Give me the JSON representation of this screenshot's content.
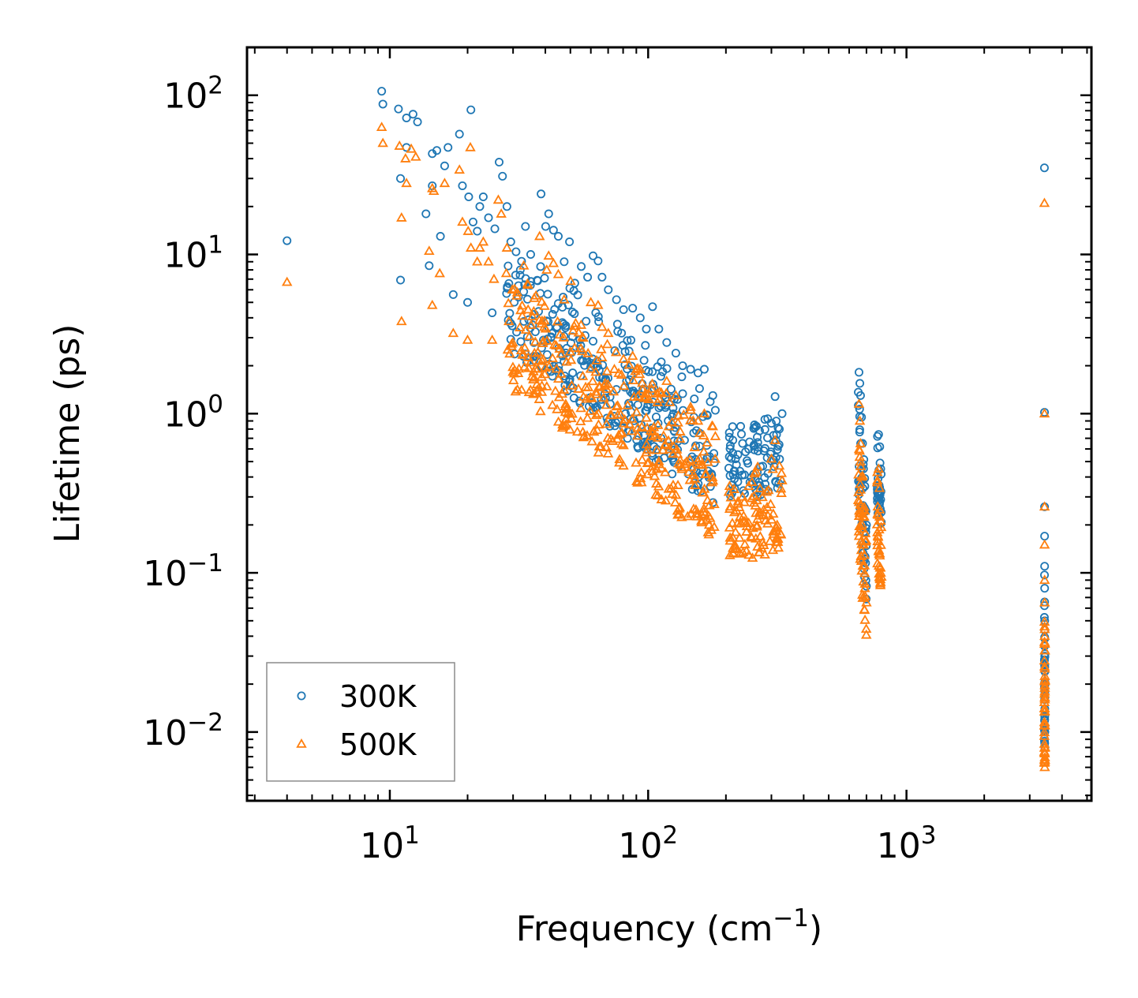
{
  "chart_data": {
    "type": "scatter",
    "xscale": "log",
    "yscale": "log",
    "xlabel": "Frequency (cm",
    "xlabel_sup": "−1",
    "xlabel_close": ")",
    "ylabel": "Lifetime (ps)",
    "xlim": [
      2.8,
      5200
    ],
    "ylim": [
      0.0037,
      200
    ],
    "xticks": [
      {
        "value": 10,
        "base": "10",
        "exp": "1"
      },
      {
        "value": 100,
        "base": "10",
        "exp": "2"
      },
      {
        "value": 1000,
        "base": "10",
        "exp": "3"
      }
    ],
    "yticks": [
      {
        "value": 0.01,
        "base": "10",
        "exp": "−2"
      },
      {
        "value": 0.1,
        "base": "10",
        "exp": "−1"
      },
      {
        "value": 1,
        "base": "10",
        "exp": "0"
      },
      {
        "value": 10,
        "base": "10",
        "exp": "1"
      },
      {
        "value": 100,
        "base": "10",
        "exp": "2"
      }
    ],
    "legend": {
      "position": "lower-left"
    },
    "series": [
      {
        "name": "300K",
        "marker": "circle",
        "color": "#1f77b4",
        "points": [
          [
            4.0,
            12.2
          ],
          [
            9.3,
            106
          ],
          [
            9.4,
            88
          ],
          [
            10.8,
            82
          ],
          [
            11.6,
            72
          ],
          [
            12.3,
            76
          ],
          [
            12.8,
            68
          ],
          [
            11.0,
            30
          ],
          [
            11.6,
            47
          ],
          [
            11.0,
            6.9
          ],
          [
            13.8,
            18
          ],
          [
            14.6,
            43
          ],
          [
            15.2,
            45
          ],
          [
            16.3,
            36
          ],
          [
            16.8,
            47
          ],
          [
            15.7,
            13
          ],
          [
            14.6,
            27
          ],
          [
            14.2,
            8.5
          ],
          [
            17.6,
            5.6
          ],
          [
            18.6,
            57
          ],
          [
            19.1,
            27
          ],
          [
            20.2,
            23
          ],
          [
            20.6,
            81
          ],
          [
            20.0,
            5.0
          ],
          [
            21.0,
            16
          ],
          [
            21.8,
            14
          ],
          [
            22.3,
            20
          ],
          [
            23.0,
            23
          ],
          [
            24.1,
            17
          ],
          [
            24.9,
            4.3
          ],
          [
            25.5,
            14.5
          ],
          [
            26.5,
            38
          ],
          [
            27.3,
            31
          ],
          [
            28.4,
            20
          ],
          [
            29.4,
            12
          ],
          [
            30.8,
            10.4
          ],
          [
            32.0,
            8
          ],
          [
            33.5,
            15
          ],
          [
            35.1,
            10
          ],
          [
            36.3,
            4.2
          ],
          [
            38.5,
            24
          ],
          [
            40.1,
            15
          ],
          [
            41.2,
            18
          ],
          [
            43.0,
            14.2
          ],
          [
            44.9,
            13
          ],
          [
            47.3,
            9.0
          ],
          [
            49.6,
            12
          ],
          [
            52.0,
            6.6
          ],
          [
            55.1,
            8.4
          ],
          [
            58.3,
            7.2
          ],
          [
            61.2,
            9.8
          ],
          [
            64.0,
            9.1
          ],
          [
            66.3,
            7.2
          ],
          [
            70.1,
            6.0
          ],
          [
            75.4,
            5.2
          ],
          [
            80.3,
            4.5
          ],
          [
            87.1,
            4.6
          ],
          [
            93.2,
            4.0
          ],
          [
            98.4,
            3.4
          ],
          [
            104,
            4.7
          ],
          [
            110,
            3.4
          ],
          [
            118,
            2.8
          ],
          [
            128,
            2.4
          ],
          [
            136,
            2.0
          ],
          [
            146,
            1.9
          ],
          [
            156,
            1.8
          ],
          [
            165,
            1.9
          ],
          [
            178,
            1.3
          ],
          [
            182,
            1.05
          ],
          [
            208,
            0.63
          ],
          [
            218,
            0.52
          ],
          [
            232,
            0.65
          ],
          [
            245,
            0.6
          ],
          [
            258,
            0.85
          ],
          [
            270,
            0.78
          ],
          [
            283,
            0.92
          ],
          [
            300,
            0.87
          ],
          [
            310,
            1.28
          ],
          [
            322,
            0.8
          ],
          [
            330,
            1.0
          ],
          [
            655,
            1.82
          ],
          [
            660,
            1.55
          ],
          [
            664,
            1.3
          ],
          [
            670,
            0.95
          ],
          [
            676,
            0.65
          ],
          [
            682,
            0.45
          ],
          [
            690,
            0.35
          ],
          [
            700,
            0.2
          ],
          [
            772,
            0.72
          ],
          [
            780,
            0.74
          ],
          [
            788,
            0.62
          ],
          [
            795,
            0.45
          ],
          [
            3420,
            35
          ],
          [
            3422,
            1.02
          ],
          [
            3424,
            0.26
          ],
          [
            3425,
            0.17
          ],
          [
            3426,
            0.11
          ],
          [
            3427,
            0.08
          ],
          [
            3428,
            0.05
          ],
          [
            3430,
            0.03
          ],
          [
            3431,
            0.02
          ],
          [
            3432,
            0.014
          ],
          [
            3433,
            0.01
          ],
          [
            3434,
            0.008
          ]
        ],
        "clusters": [
          {
            "x": [
              28,
              182
            ],
            "yhi": [
              13,
              1.3
            ],
            "spread": 0.7,
            "count": 320
          },
          {
            "x": [
              205,
              330
            ],
            "yhi": [
              0.9,
              0.95
            ],
            "spread": 0.5,
            "count": 90
          },
          {
            "x": [
              650,
              700
            ],
            "yhi": [
              1.7,
              0.35
            ],
            "spread": 0.75,
            "count": 50
          },
          {
            "x": [
              770,
              800
            ],
            "yhi": [
              0.7,
              0.5
            ],
            "spread": 0.45,
            "count": 30
          },
          {
            "x": [
              3418,
              3436
            ],
            "yhi": [
              0.1,
              0.1
            ],
            "spread": 1.1,
            "count": 40
          }
        ]
      },
      {
        "name": "500K",
        "marker": "triangle",
        "color": "#ff7f0e",
        "points": [
          [
            4.0,
            6.7
          ],
          [
            9.3,
            63
          ],
          [
            9.4,
            50
          ],
          [
            10.9,
            48
          ],
          [
            11.5,
            40
          ],
          [
            12.1,
            46
          ],
          [
            12.6,
            41
          ],
          [
            11.1,
            17
          ],
          [
            11.6,
            28
          ],
          [
            11.1,
            3.8
          ],
          [
            14.2,
            10.5
          ],
          [
            14.6,
            26
          ],
          [
            14.8,
            25
          ],
          [
            15.6,
            7.6
          ],
          [
            16.3,
            28
          ],
          [
            14.6,
            4.8
          ],
          [
            17.6,
            3.2
          ],
          [
            18.6,
            34
          ],
          [
            19.1,
            16
          ],
          [
            20.1,
            14
          ],
          [
            20.5,
            47
          ],
          [
            20.0,
            2.9
          ],
          [
            20.6,
            11
          ],
          [
            21.8,
            9.0
          ],
          [
            22.3,
            11
          ],
          [
            23.0,
            12
          ],
          [
            24.1,
            9.0
          ],
          [
            24.9,
            2.9
          ],
          [
            25.3,
            7.0
          ],
          [
            26.3,
            22
          ],
          [
            27.0,
            18
          ],
          [
            28.4,
            11
          ],
          [
            29.8,
            6.0
          ],
          [
            31.0,
            5.5
          ],
          [
            33.0,
            8.5
          ],
          [
            34.3,
            4.5
          ],
          [
            36.3,
            2.4
          ],
          [
            38.0,
            13
          ],
          [
            40.5,
            8.0
          ],
          [
            41.2,
            9.8
          ],
          [
            43.0,
            8.8
          ],
          [
            44.9,
            7.5
          ],
          [
            47.3,
            5.2
          ],
          [
            50.1,
            6.8
          ],
          [
            55.0,
            3.6
          ],
          [
            60.0,
            5.0
          ],
          [
            64.0,
            4.8
          ],
          [
            66.3,
            3.5
          ],
          [
            70.1,
            3.2
          ],
          [
            74.0,
            1.9
          ],
          [
            80.3,
            2.2
          ],
          [
            87.1,
            2.3
          ],
          [
            93.2,
            1.9
          ],
          [
            98.4,
            0.57
          ],
          [
            110,
            0.48
          ],
          [
            118,
            1.6
          ],
          [
            128,
            1.3
          ],
          [
            135,
            0.46
          ],
          [
            146,
            1.1
          ],
          [
            156,
            0.9
          ],
          [
            165,
            1.0
          ],
          [
            178,
            0.83
          ],
          [
            182,
            0.72
          ],
          [
            208,
            0.26
          ],
          [
            218,
            0.18
          ],
          [
            232,
            0.3
          ],
          [
            245,
            0.35
          ],
          [
            258,
            0.42
          ],
          [
            270,
            0.24
          ],
          [
            283,
            0.13
          ],
          [
            300,
            0.52
          ],
          [
            310,
            0.68
          ],
          [
            322,
            0.47
          ],
          [
            330,
            0.38
          ],
          [
            655,
            1.15
          ],
          [
            660,
            0.9
          ],
          [
            664,
            0.65
          ],
          [
            670,
            0.4
          ],
          [
            676,
            0.25
          ],
          [
            682,
            0.15
          ],
          [
            690,
            0.08
          ],
          [
            700,
            0.065
          ],
          [
            772,
            0.38
          ],
          [
            780,
            0.45
          ],
          [
            788,
            0.25
          ],
          [
            795,
            0.1
          ],
          [
            3420,
            21
          ],
          [
            3422,
            1.0
          ],
          [
            3424,
            0.26
          ],
          [
            3425,
            0.15
          ],
          [
            3426,
            0.09
          ],
          [
            3427,
            0.065
          ],
          [
            3428,
            0.04
          ],
          [
            3430,
            0.025
          ],
          [
            3431,
            0.016
          ],
          [
            3432,
            0.011
          ],
          [
            3433,
            0.008
          ],
          [
            3434,
            0.0065
          ]
        ],
        "clusters": [
          {
            "x": [
              28,
              182
            ],
            "yhi": [
              8.5,
              0.85
            ],
            "spread": 0.75,
            "count": 360
          },
          {
            "x": [
              205,
              330
            ],
            "yhi": [
              0.45,
              0.55
            ],
            "spread": 0.6,
            "count": 100
          },
          {
            "x": [
              650,
              700
            ],
            "yhi": [
              1.1,
              0.2
            ],
            "spread": 0.8,
            "count": 55
          },
          {
            "x": [
              770,
              800
            ],
            "yhi": [
              0.45,
              0.3
            ],
            "spread": 0.6,
            "count": 35
          },
          {
            "x": [
              3418,
              3436
            ],
            "yhi": [
              0.06,
              0.06
            ],
            "spread": 1.0,
            "count": 45
          }
        ]
      }
    ]
  }
}
